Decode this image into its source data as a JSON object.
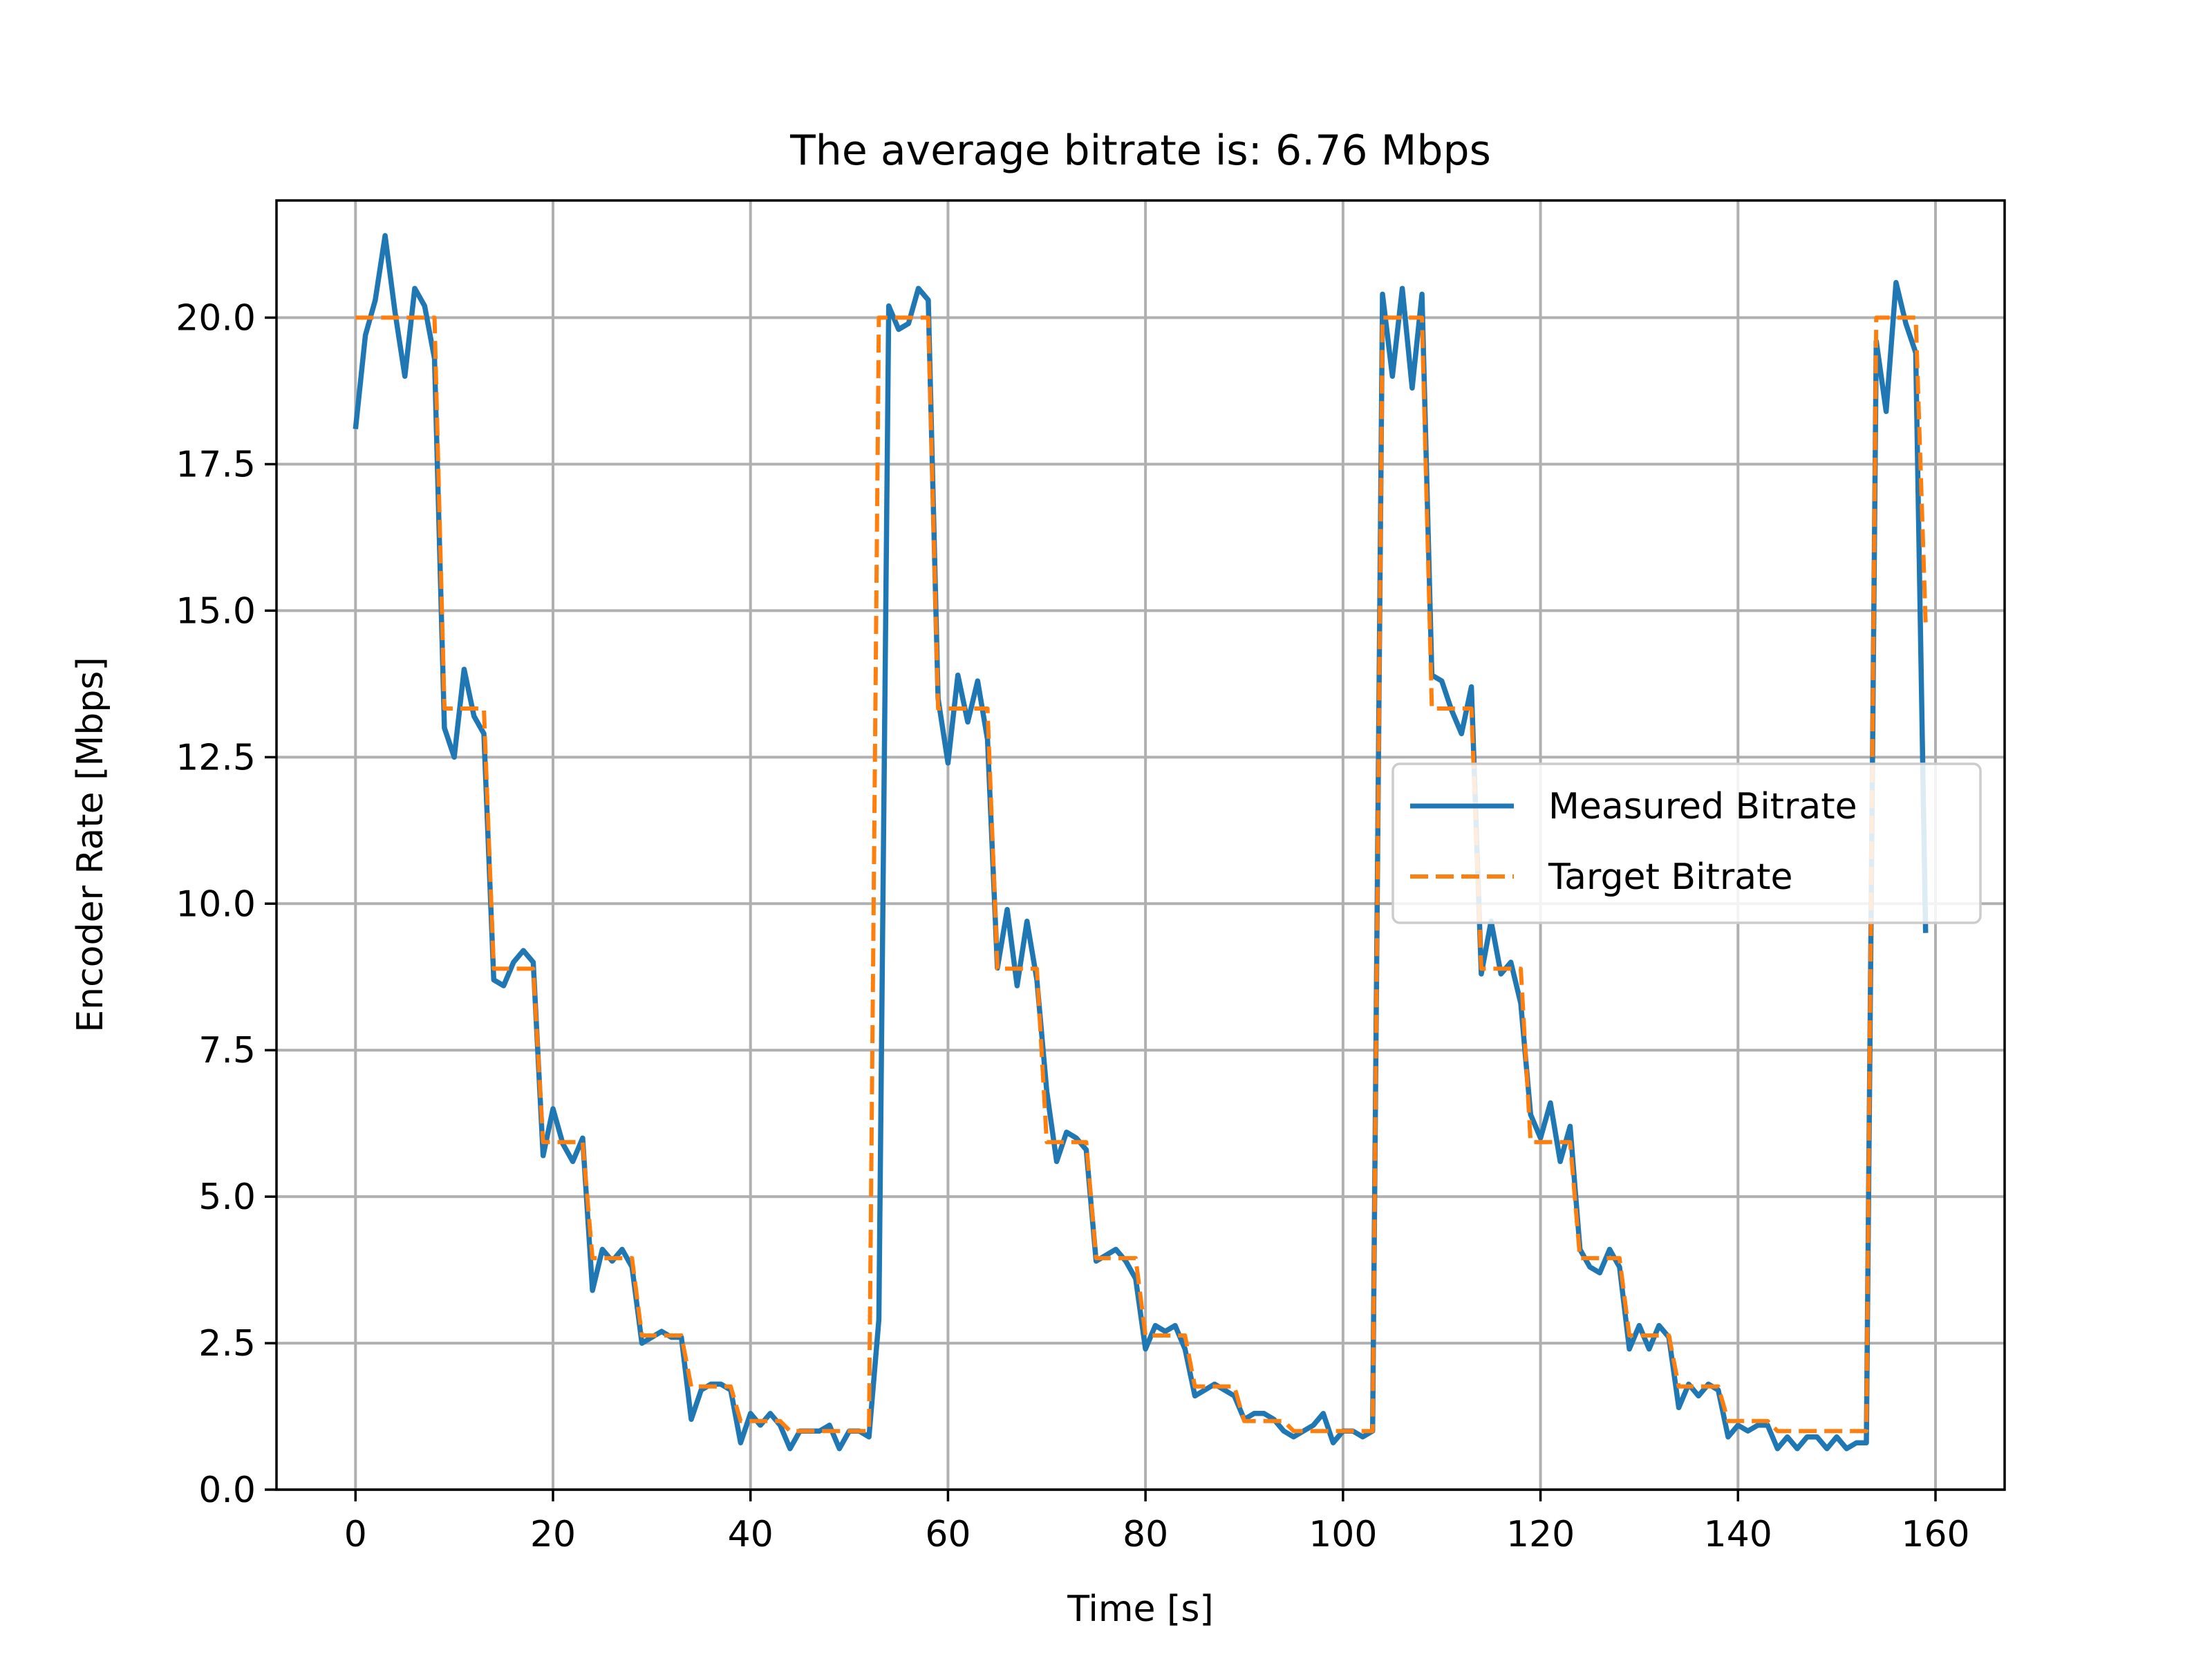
{
  "chart_data": {
    "type": "line",
    "title": "The average bitrate is: 6.76 Mbps",
    "xlabel": "Time [s]",
    "ylabel": "Encoder Rate [Mbps]",
    "xlim": [
      -8,
      167
    ],
    "ylim": [
      0,
      22
    ],
    "xticks": [
      0,
      20,
      40,
      60,
      80,
      100,
      120,
      140,
      160
    ],
    "xtick_labels": [
      "0",
      "20",
      "40",
      "60",
      "80",
      "100",
      "120",
      "140",
      "160"
    ],
    "yticks": [
      0,
      2.5,
      5,
      7.5,
      10,
      12.5,
      15,
      17.5,
      20
    ],
    "ytick_labels": [
      "0.0",
      "2.5",
      "5.0",
      "7.5",
      "10.0",
      "12.5",
      "15.0",
      "17.5",
      "20.0"
    ],
    "grid": true,
    "legend_position": "center-right",
    "series": [
      {
        "name": "Measured Bitrate",
        "color": "#1f77b4",
        "style": "solid",
        "points": [
          [
            0,
            18.1
          ],
          [
            1,
            19.7
          ],
          [
            2,
            20.3
          ],
          [
            3,
            21.4
          ],
          [
            4,
            20.1
          ],
          [
            5,
            19.0
          ],
          [
            6,
            20.5
          ],
          [
            7,
            20.2
          ],
          [
            8,
            19.3
          ],
          [
            9,
            13.0
          ],
          [
            10,
            12.5
          ],
          [
            11,
            14.0
          ],
          [
            12,
            13.2
          ],
          [
            13,
            12.9
          ],
          [
            14,
            8.7
          ],
          [
            15,
            8.6
          ],
          [
            16,
            9.0
          ],
          [
            17,
            9.2
          ],
          [
            18,
            9.0
          ],
          [
            19,
            5.7
          ],
          [
            20,
            6.5
          ],
          [
            21,
            5.9
          ],
          [
            22,
            5.6
          ],
          [
            23,
            6.0
          ],
          [
            24,
            3.4
          ],
          [
            25,
            4.1
          ],
          [
            26,
            3.9
          ],
          [
            27,
            4.1
          ],
          [
            28,
            3.8
          ],
          [
            29,
            2.5
          ],
          [
            30,
            2.6
          ],
          [
            31,
            2.7
          ],
          [
            32,
            2.6
          ],
          [
            33,
            2.6
          ],
          [
            34,
            1.2
          ],
          [
            35,
            1.7
          ],
          [
            36,
            1.8
          ],
          [
            37,
            1.8
          ],
          [
            38,
            1.7
          ],
          [
            39,
            0.8
          ],
          [
            40,
            1.3
          ],
          [
            41,
            1.1
          ],
          [
            42,
            1.3
          ],
          [
            43,
            1.1
          ],
          [
            44,
            0.7
          ],
          [
            45,
            1.0
          ],
          [
            46,
            1.0
          ],
          [
            47,
            1.0
          ],
          [
            48,
            1.1
          ],
          [
            49,
            0.7
          ],
          [
            50,
            1.0
          ],
          [
            51,
            1.0
          ],
          [
            52,
            0.9
          ],
          [
            53,
            2.9
          ],
          [
            54,
            20.2
          ],
          [
            55,
            19.8
          ],
          [
            56,
            19.9
          ],
          [
            57,
            20.5
          ],
          [
            58,
            20.3
          ],
          [
            59,
            13.5
          ],
          [
            60,
            12.4
          ],
          [
            61,
            13.9
          ],
          [
            62,
            13.1
          ],
          [
            63,
            13.8
          ],
          [
            64,
            12.8
          ],
          [
            65,
            8.9
          ],
          [
            66,
            9.9
          ],
          [
            67,
            8.6
          ],
          [
            68,
            9.7
          ],
          [
            69,
            8.7
          ],
          [
            70,
            6.8
          ],
          [
            71,
            5.6
          ],
          [
            72,
            6.1
          ],
          [
            73,
            6.0
          ],
          [
            74,
            5.8
          ],
          [
            75,
            3.9
          ],
          [
            76,
            4.0
          ],
          [
            77,
            4.1
          ],
          [
            78,
            3.9
          ],
          [
            79,
            3.6
          ],
          [
            80,
            2.4
          ],
          [
            81,
            2.8
          ],
          [
            82,
            2.7
          ],
          [
            83,
            2.8
          ],
          [
            84,
            2.4
          ],
          [
            85,
            1.6
          ],
          [
            86,
            1.7
          ],
          [
            87,
            1.8
          ],
          [
            88,
            1.7
          ],
          [
            89,
            1.6
          ],
          [
            90,
            1.2
          ],
          [
            91,
            1.3
          ],
          [
            92,
            1.3
          ],
          [
            93,
            1.2
          ],
          [
            94,
            1.0
          ],
          [
            95,
            0.9
          ],
          [
            96,
            1.0
          ],
          [
            97,
            1.1
          ],
          [
            98,
            1.3
          ],
          [
            99,
            0.8
          ],
          [
            100,
            1.0
          ],
          [
            101,
            1.0
          ],
          [
            102,
            0.9
          ],
          [
            103,
            1.0
          ],
          [
            104,
            20.4
          ],
          [
            105,
            19.0
          ],
          [
            106,
            20.5
          ],
          [
            107,
            18.8
          ],
          [
            108,
            20.4
          ],
          [
            109,
            13.9
          ],
          [
            110,
            13.8
          ],
          [
            111,
            13.3
          ],
          [
            112,
            12.9
          ],
          [
            113,
            13.7
          ],
          [
            114,
            8.8
          ],
          [
            115,
            9.7
          ],
          [
            116,
            8.8
          ],
          [
            117,
            9.0
          ],
          [
            118,
            8.3
          ],
          [
            119,
            6.4
          ],
          [
            120,
            6.0
          ],
          [
            121,
            6.6
          ],
          [
            122,
            5.6
          ],
          [
            123,
            6.2
          ],
          [
            124,
            4.1
          ],
          [
            125,
            3.8
          ],
          [
            126,
            3.7
          ],
          [
            127,
            4.1
          ],
          [
            128,
            3.8
          ],
          [
            129,
            2.4
          ],
          [
            130,
            2.8
          ],
          [
            131,
            2.4
          ],
          [
            132,
            2.8
          ],
          [
            133,
            2.6
          ],
          [
            134,
            1.4
          ],
          [
            135,
            1.8
          ],
          [
            136,
            1.6
          ],
          [
            137,
            1.8
          ],
          [
            138,
            1.7
          ],
          [
            139,
            0.9
          ],
          [
            140,
            1.1
          ],
          [
            141,
            1.0
          ],
          [
            142,
            1.1
          ],
          [
            143,
            1.1
          ],
          [
            144,
            0.7
          ],
          [
            145,
            0.9
          ],
          [
            146,
            0.7
          ],
          [
            147,
            0.9
          ],
          [
            148,
            0.9
          ],
          [
            149,
            0.7
          ],
          [
            150,
            0.9
          ],
          [
            151,
            0.7
          ],
          [
            152,
            0.8
          ],
          [
            153,
            0.8
          ],
          [
            154,
            19.6
          ],
          [
            155,
            18.4
          ],
          [
            156,
            20.6
          ],
          [
            157,
            19.9
          ],
          [
            158,
            19.4
          ],
          [
            159,
            9.5
          ]
        ]
      },
      {
        "name": "Target Bitrate",
        "color": "#ff7f0e",
        "style": "dashed",
        "points": [
          [
            0,
            20.0
          ],
          [
            8,
            20.0
          ],
          [
            9,
            13.33
          ],
          [
            13,
            13.33
          ],
          [
            14,
            8.89
          ],
          [
            18,
            8.89
          ],
          [
            19,
            5.93
          ],
          [
            23,
            5.93
          ],
          [
            24,
            3.95
          ],
          [
            28,
            3.95
          ],
          [
            29,
            2.63
          ],
          [
            33,
            2.63
          ],
          [
            34,
            1.76
          ],
          [
            38,
            1.76
          ],
          [
            39,
            1.17
          ],
          [
            43,
            1.17
          ],
          [
            44,
            1.0
          ],
          [
            52,
            1.0
          ],
          [
            53,
            20.0
          ],
          [
            58,
            20.0
          ],
          [
            59,
            13.33
          ],
          [
            63,
            13.33
          ],
          [
            64,
            13.33
          ],
          [
            65,
            8.89
          ],
          [
            68,
            8.89
          ],
          [
            69,
            8.89
          ],
          [
            70,
            5.93
          ],
          [
            73,
            5.93
          ],
          [
            74,
            5.93
          ],
          [
            75,
            3.95
          ],
          [
            78,
            3.95
          ],
          [
            79,
            3.95
          ],
          [
            80,
            2.63
          ],
          [
            83,
            2.63
          ],
          [
            84,
            2.63
          ],
          [
            85,
            1.76
          ],
          [
            88,
            1.76
          ],
          [
            89,
            1.76
          ],
          [
            90,
            1.17
          ],
          [
            93,
            1.17
          ],
          [
            94,
            1.17
          ],
          [
            95,
            1.0
          ],
          [
            102,
            1.0
          ],
          [
            103,
            1.0
          ],
          [
            104,
            20.0
          ],
          [
            108,
            20.0
          ],
          [
            109,
            13.33
          ],
          [
            113,
            13.33
          ],
          [
            114,
            8.89
          ],
          [
            118,
            8.89
          ],
          [
            119,
            5.93
          ],
          [
            123,
            5.93
          ],
          [
            124,
            3.95
          ],
          [
            128,
            3.95
          ],
          [
            129,
            2.63
          ],
          [
            133,
            2.63
          ],
          [
            134,
            1.76
          ],
          [
            138,
            1.76
          ],
          [
            139,
            1.17
          ],
          [
            143,
            1.17
          ],
          [
            144,
            1.0
          ],
          [
            153,
            1.0
          ],
          [
            154,
            20.0
          ],
          [
            158,
            20.0
          ],
          [
            159,
            14.8
          ]
        ]
      }
    ]
  }
}
